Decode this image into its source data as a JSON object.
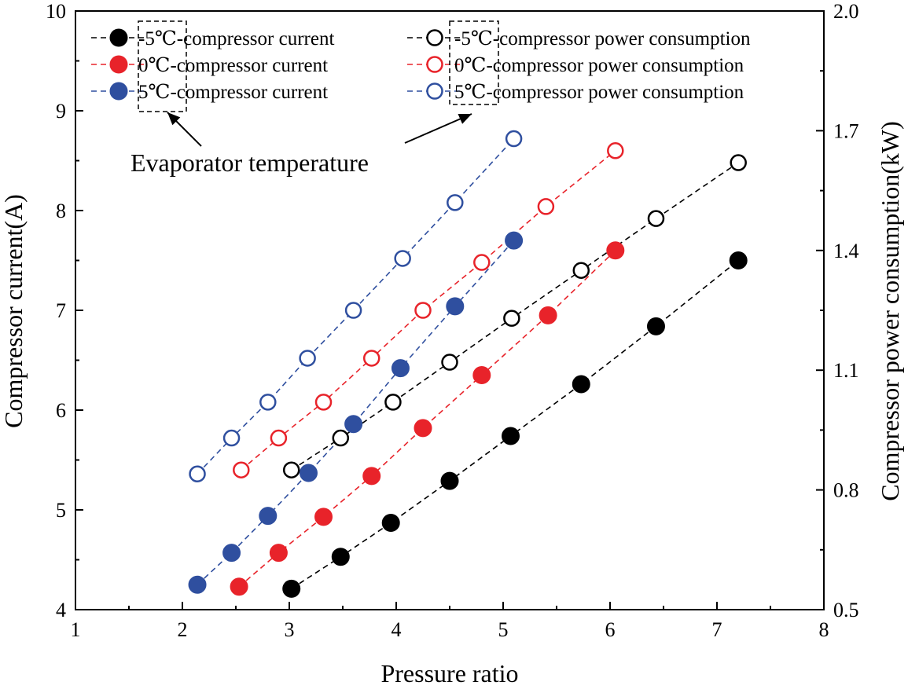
{
  "chart_data": {
    "type": "scatter",
    "xlabel": "Pressure ratio",
    "ylabel": "Compressor current(A)",
    "y2label": "Compressor power consumption(kW)",
    "xlim": [
      1,
      8
    ],
    "ylim": [
      4,
      10
    ],
    "y2lim": [
      0.5,
      2.0
    ],
    "xticks": [
      "1",
      "2",
      "3",
      "4",
      "5",
      "6",
      "7",
      "8"
    ],
    "yticks": [
      "4",
      "5",
      "6",
      "7",
      "8",
      "9",
      "10"
    ],
    "y2ticks": [
      "0.5",
      "0.8",
      "1.1",
      "1.4",
      "1.7",
      "2.0"
    ],
    "colors": {
      "black": "#000000",
      "red": "#e8232a",
      "blue": "#2f4f9f"
    },
    "series": [
      {
        "name": "-5℃-compressor current",
        "axis": "left",
        "marker": "filled",
        "color": "#000000",
        "x": [
          3.02,
          3.48,
          3.95,
          4.5,
          5.07,
          5.73,
          6.43,
          7.2
        ],
        "y": [
          4.21,
          4.53,
          4.87,
          5.29,
          5.74,
          6.26,
          6.84,
          7.5
        ]
      },
      {
        "name": "0℃-compressor current",
        "axis": "left",
        "marker": "filled",
        "color": "#e8232a",
        "x": [
          2.53,
          2.9,
          3.32,
          3.77,
          4.25,
          4.8,
          5.42,
          6.05
        ],
        "y": [
          4.23,
          4.57,
          4.93,
          5.34,
          5.82,
          6.35,
          6.95,
          7.6
        ]
      },
      {
        "name": "5℃-compressor current",
        "axis": "left",
        "marker": "filled",
        "color": "#2f4f9f",
        "x": [
          2.14,
          2.46,
          2.8,
          3.18,
          3.6,
          4.04,
          4.55,
          5.1
        ],
        "y": [
          4.25,
          4.57,
          4.94,
          5.37,
          5.86,
          6.42,
          7.04,
          7.7
        ]
      },
      {
        "name": "-5℃-compressor power consumption",
        "axis": "right",
        "marker": "open",
        "color": "#000000",
        "x": [
          3.02,
          3.48,
          3.97,
          4.5,
          5.08,
          5.73,
          6.43,
          7.2
        ],
        "y": [
          0.85,
          0.93,
          1.02,
          1.12,
          1.23,
          1.35,
          1.48,
          1.62
        ]
      },
      {
        "name": "0℃-compressor power consumption",
        "axis": "right",
        "marker": "open",
        "color": "#e8232a",
        "x": [
          2.55,
          2.9,
          3.32,
          3.77,
          4.25,
          4.8,
          5.4,
          6.05
        ],
        "y": [
          0.85,
          0.93,
          1.02,
          1.13,
          1.25,
          1.37,
          1.51,
          1.65
        ]
      },
      {
        "name": "5℃-compressor power consumption",
        "axis": "right",
        "marker": "open",
        "color": "#2f4f9f",
        "x": [
          2.14,
          2.46,
          2.8,
          3.17,
          3.6,
          4.06,
          4.55,
          5.1
        ],
        "y": [
          0.84,
          0.93,
          1.02,
          1.13,
          1.25,
          1.38,
          1.52,
          1.68
        ]
      }
    ],
    "annotations": [
      {
        "text": "Evaporator temperature"
      }
    ]
  }
}
